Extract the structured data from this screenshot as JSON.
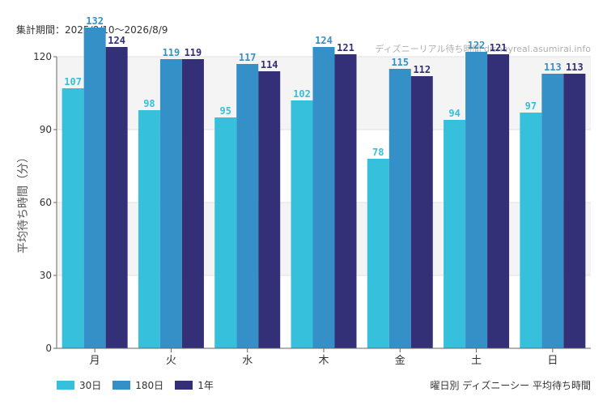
{
  "period_label": "集計期間：2025/8/10〜2026/8/9",
  "watermark": "ディズニーリアル待ち時間 disneyreal.asumirai.info",
  "caption": "曜日別 ディズニーシー 平均待ち時間",
  "chart_data": {
    "type": "bar",
    "categories": [
      "月",
      "火",
      "水",
      "木",
      "金",
      "土",
      "日"
    ],
    "series": [
      {
        "name": "30日",
        "color": "#36c0dc",
        "values": [
          107,
          98,
          95,
          102,
          78,
          94,
          97
        ]
      },
      {
        "name": "180日",
        "color": "#3690c8",
        "values": [
          132,
          119,
          117,
          124,
          115,
          122,
          113
        ]
      },
      {
        "name": "1年",
        "color": "#333077",
        "values": [
          124,
          119,
          114,
          121,
          112,
          121,
          113
        ]
      }
    ],
    "ylabel": "平均待ち時間（分）",
    "ylim": [
      0,
      120
    ],
    "yticks": [
      "0",
      "30",
      "60",
      "90",
      "120"
    ],
    "grid": true
  }
}
